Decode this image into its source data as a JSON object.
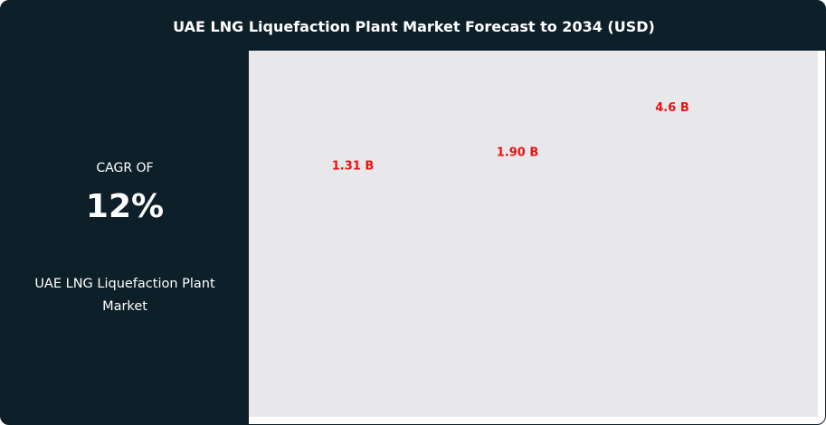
{
  "header": {
    "title": "UAE LNG Liquefaction Plant Market Forecast to 2034 (USD)"
  },
  "summary": {
    "cagr_label": "CAGR OF",
    "cagr_value": "12%",
    "market_name": "UAE LNG Liquefaction Plant Market"
  },
  "colors": {
    "background": "#0d1f29",
    "plot_background": "#e8e8ea",
    "label": "#ee1111"
  },
  "chart_data": {
    "type": "bar",
    "title": "UAE LNG Liquefaction Plant Market Forecast to 2034 (USD)",
    "values": [
      1.31,
      1.9,
      4.6
    ],
    "data_labels": [
      "1.31 B",
      "1.90 B",
      "4.6 B"
    ],
    "unit": "B USD",
    "grid": false
  }
}
